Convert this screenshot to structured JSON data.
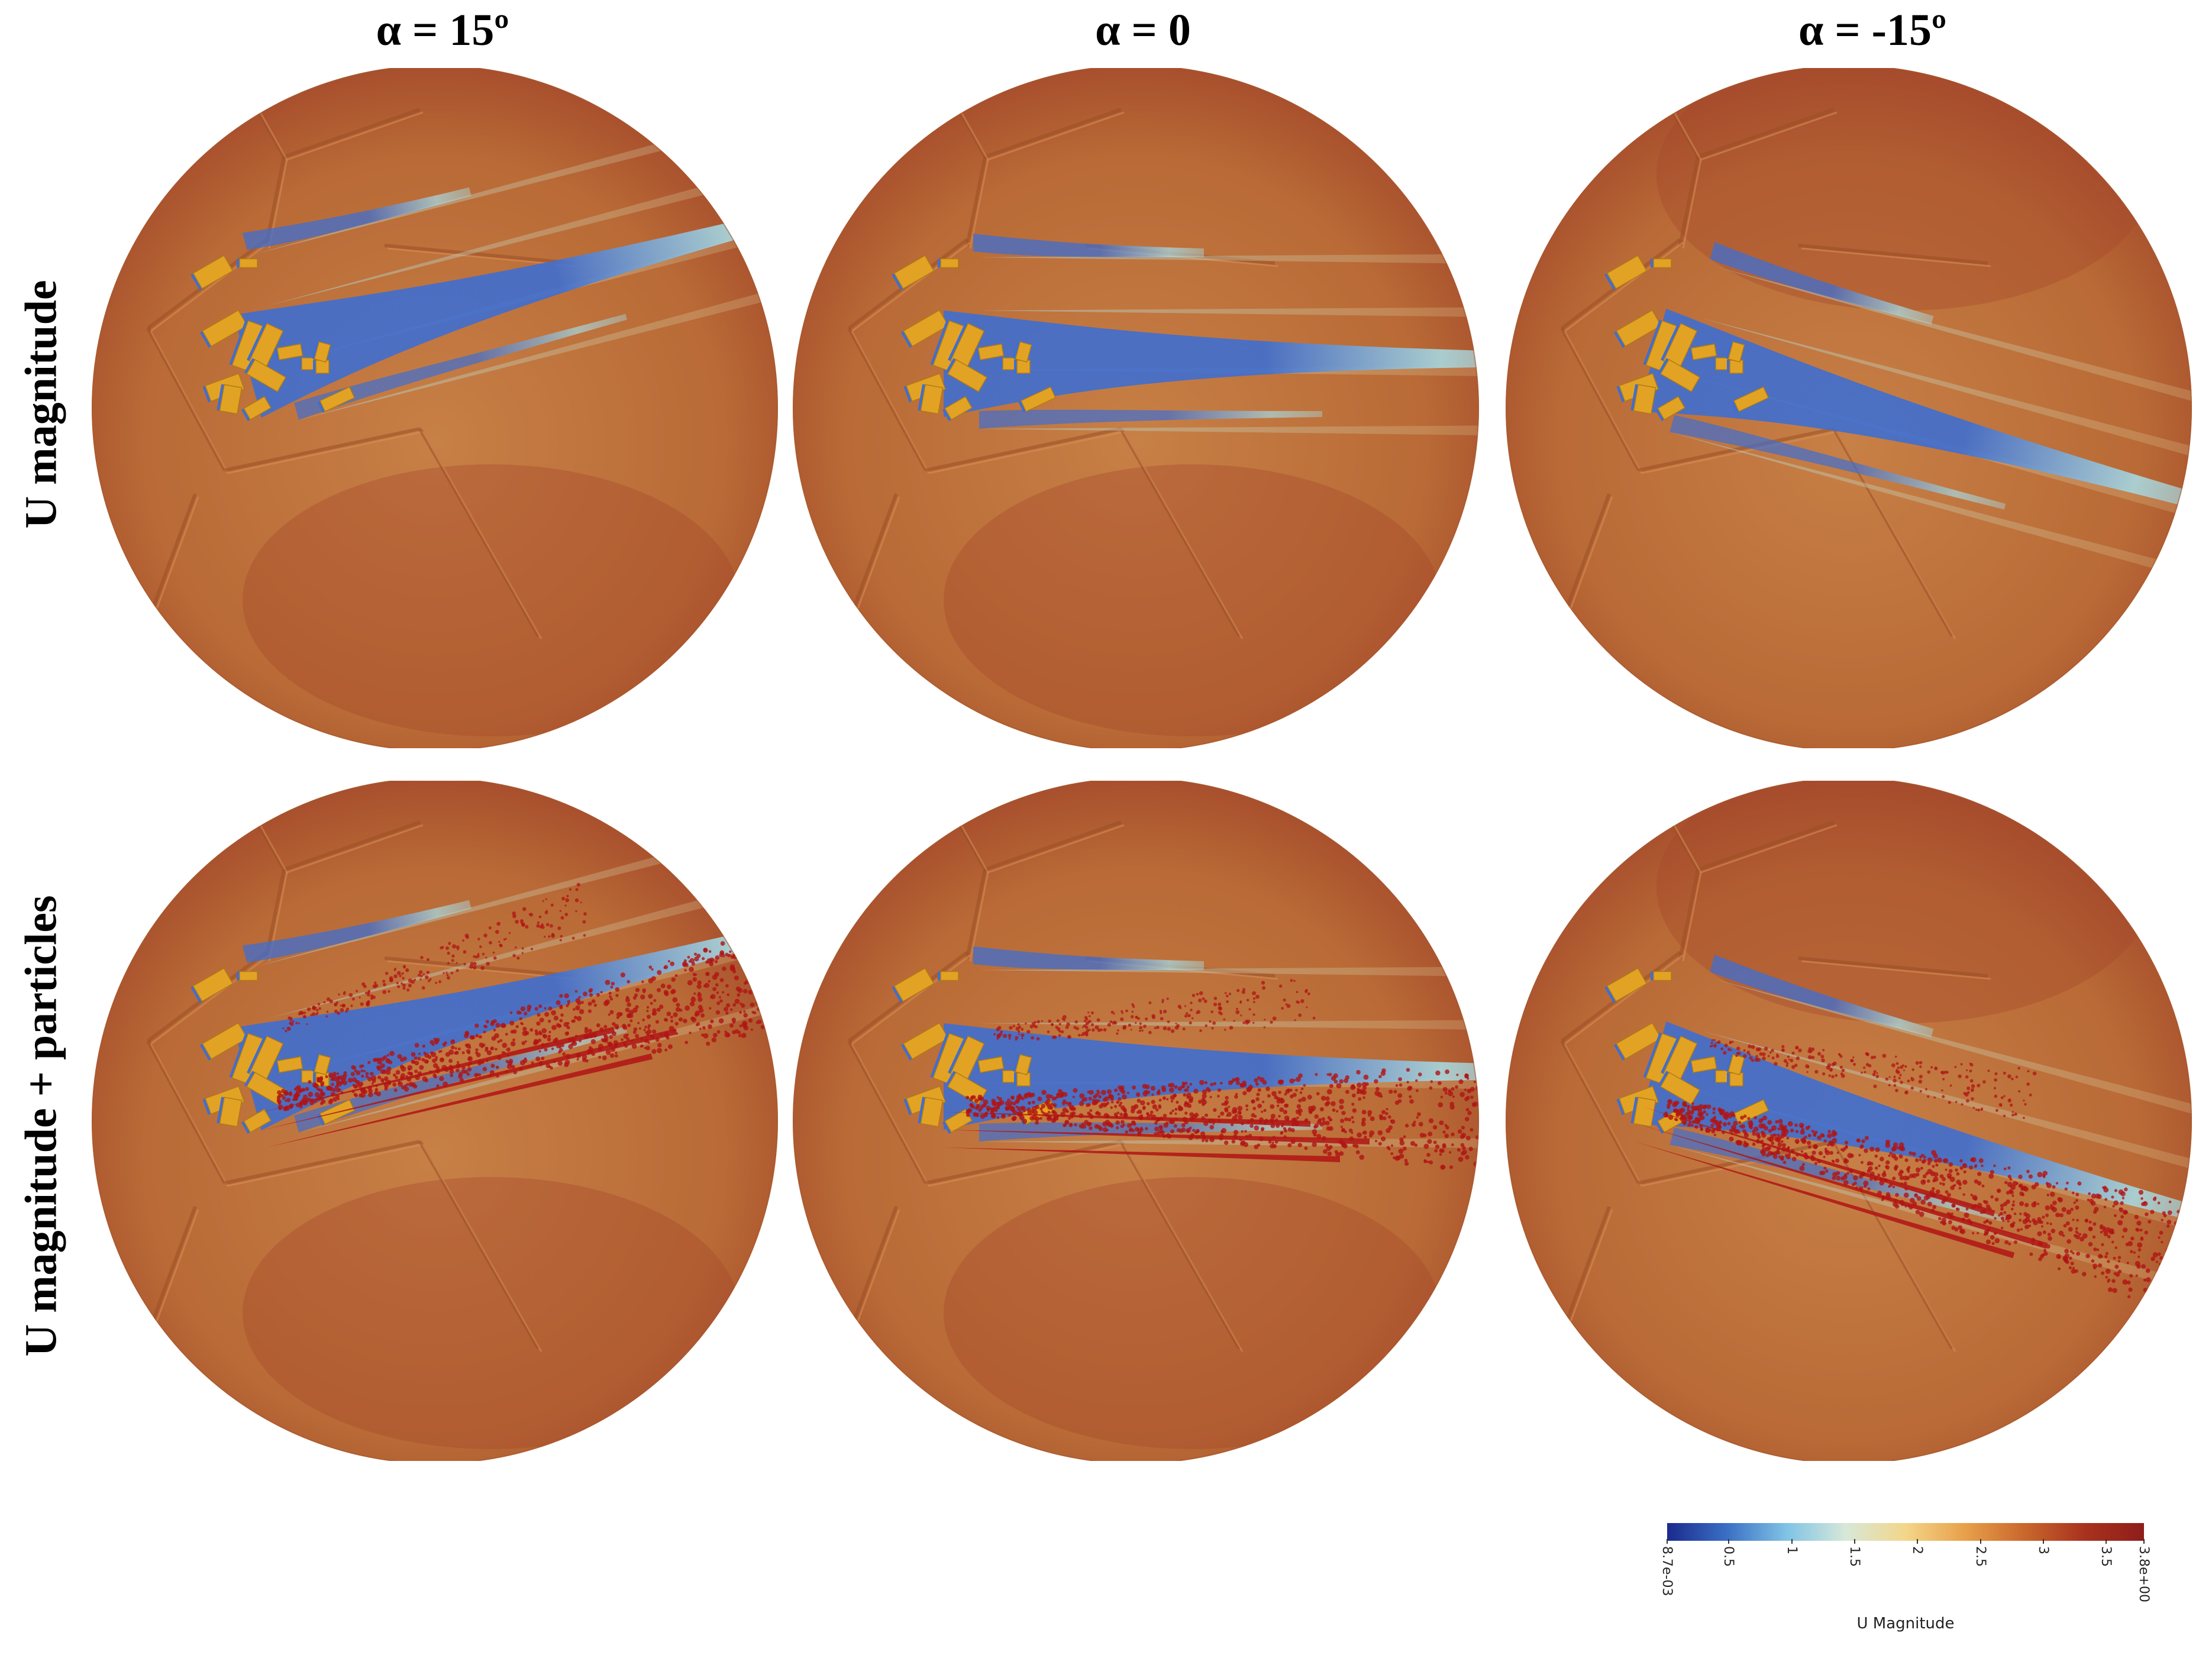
{
  "columns": [
    {
      "title": "α = 15º",
      "angle": 15
    },
    {
      "title": "α = 0",
      "angle": 0
    },
    {
      "title": "α = -15º",
      "angle": -15
    }
  ],
  "rows": [
    {
      "label": "U magnitude",
      "particles": false
    },
    {
      "label": "U magnitude + particles",
      "particles": true
    }
  ],
  "colorbar": {
    "title": "U Magnitude",
    "ticks": [
      "8.7e-03",
      "0.5",
      "1",
      "1.5",
      "2",
      "2.5",
      "3",
      "3.5",
      "3.8e+00"
    ],
    "tick_values": [
      0.0087,
      0.5,
      1,
      1.5,
      2,
      2.5,
      3,
      3.5,
      3.8
    ],
    "min": 0.0087,
    "max": 3.8,
    "colors": [
      "#1b2a8c",
      "#3a6fc4",
      "#7fc3e6",
      "#d7e8d8",
      "#f3d68a",
      "#e8a04a",
      "#c9672c",
      "#a8321f",
      "#8f1d1a"
    ]
  },
  "colors": {
    "field": "#b96a36",
    "field_dark": "#a2462a",
    "field_light": "#c78046",
    "building": "#e2a324",
    "wake_blue": "#3f6ed0",
    "wake_light": "#a8d8e0",
    "particles": "#b01414"
  }
}
